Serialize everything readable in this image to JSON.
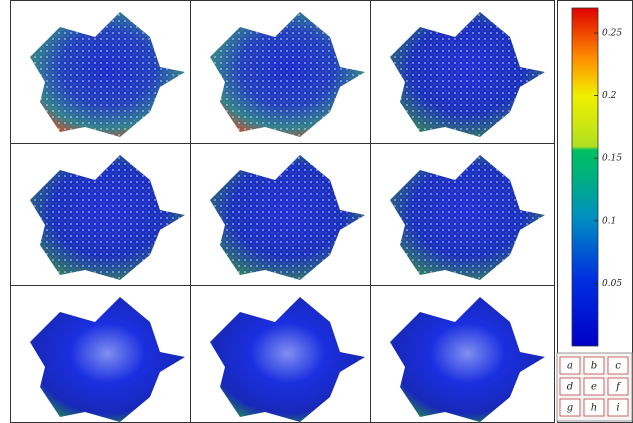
{
  "colorbar": {
    "lim": [
      0,
      0.27
    ],
    "ticks": [
      0.05,
      0.1,
      0.15,
      0.2,
      0.25
    ]
  },
  "key": {
    "labels": [
      "a",
      "b",
      "c",
      "d",
      "e",
      "f",
      "g",
      "h",
      "i"
    ]
  }
}
